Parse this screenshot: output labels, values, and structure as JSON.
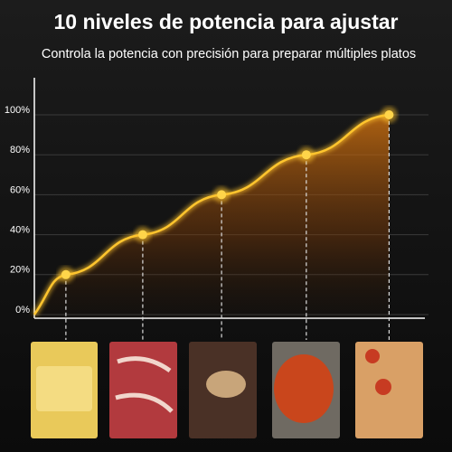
{
  "chart_data": {
    "type": "line",
    "title": "10 niveles de potencia para ajustar",
    "subtitle": "Controla la potencia con precisión para preparar múltiples platos",
    "x": [
      0,
      0.8,
      2.75,
      4.75,
      6.9,
      9.0
    ],
    "xlim": [
      0,
      10
    ],
    "series": [
      {
        "color": "#ffc52e",
        "values": [
          0,
          20,
          40,
          60,
          80,
          100
        ]
      }
    ],
    "ylim": [
      0,
      100
    ],
    "yticks": [
      {
        "value": 0,
        "label": "0%"
      },
      {
        "value": 20,
        "label": "20%"
      },
      {
        "value": 40,
        "label": "40%"
      },
      {
        "value": 60,
        "label": "60%"
      },
      {
        "value": 80,
        "label": "80%"
      },
      {
        "value": 100,
        "label": "100%"
      }
    ],
    "grid": true
  }
}
